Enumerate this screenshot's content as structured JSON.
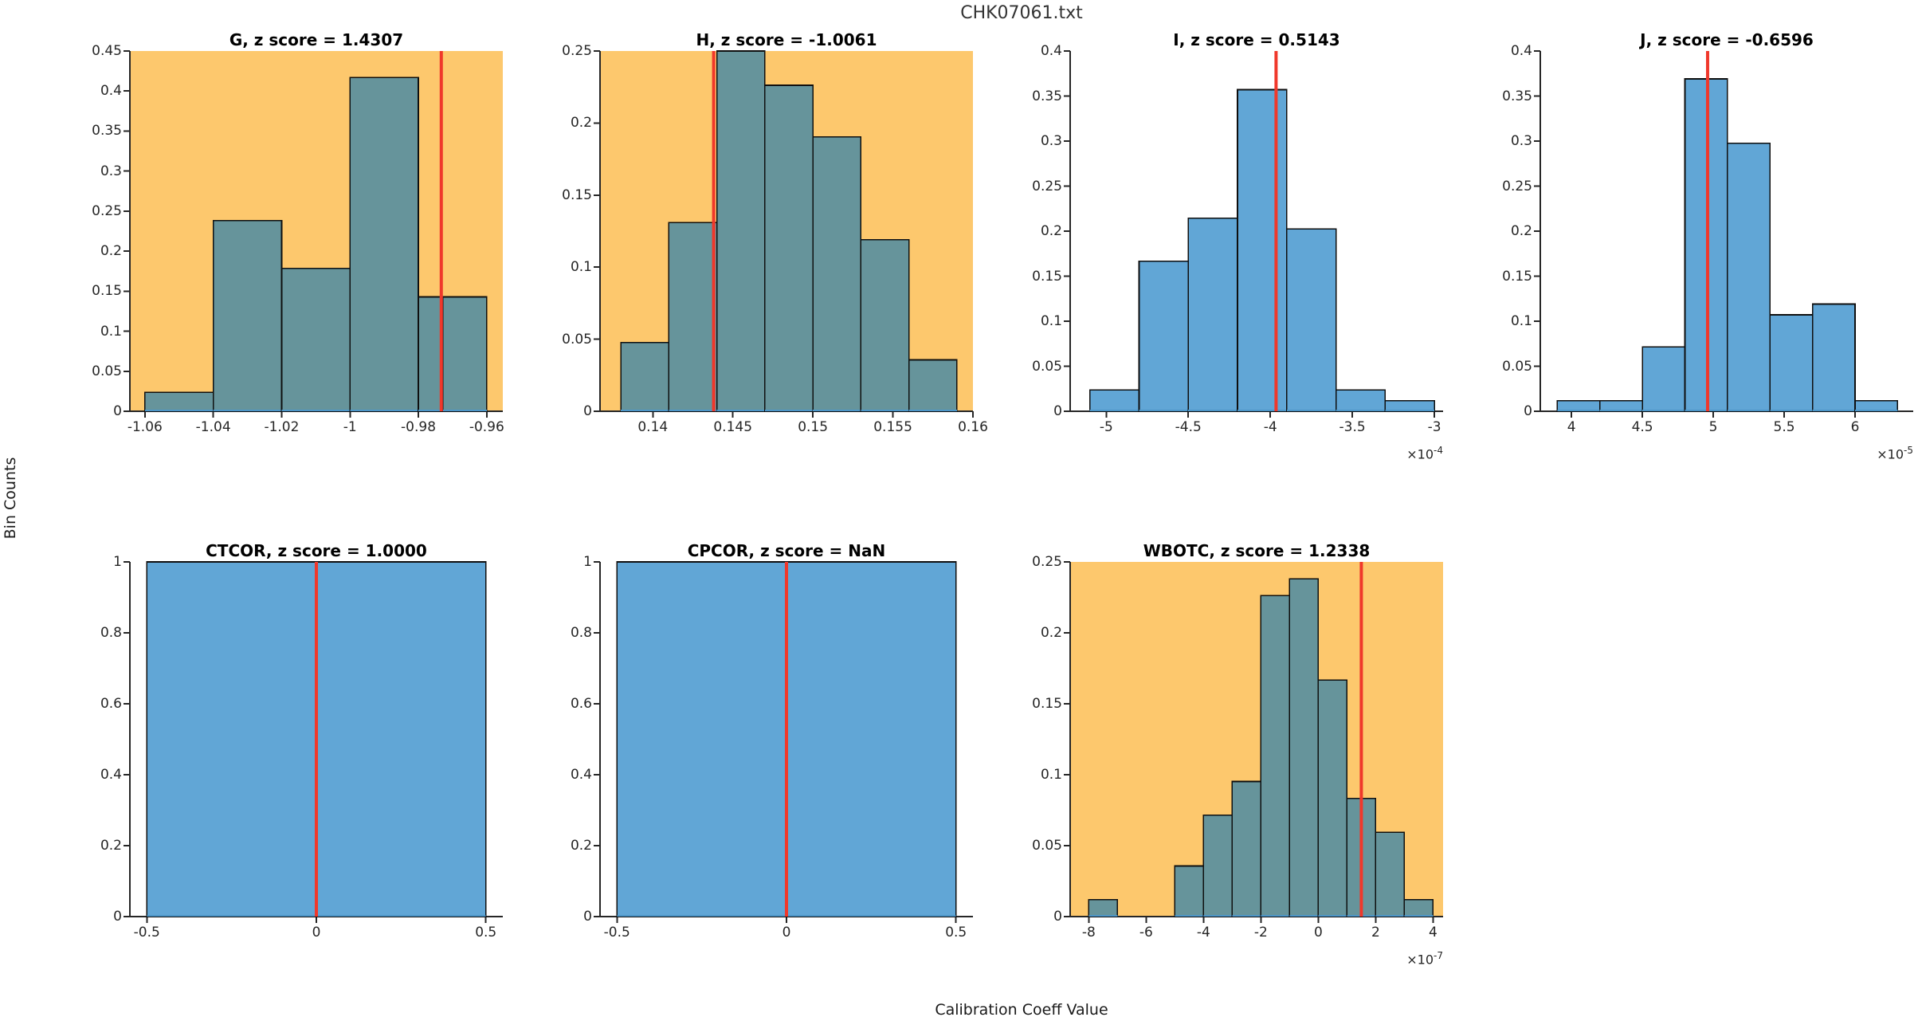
{
  "figure": {
    "title": "CHK07061.txt",
    "xlabel": "Calibration Coeff Value",
    "ylabel": "Bin Counts",
    "exponent_prefix": "×10",
    "colors": {
      "background": "#ffffff",
      "highlight_bg": "#FDC86D",
      "bar_blue": "#61A6D6",
      "bar_teal": "#66949B",
      "bar_edge": "#0f0f0f",
      "bar_baseline": "#4C96C8",
      "red_line": "#F0382B",
      "axis": "#262626",
      "tick_text": "#262626",
      "title_text": "#000000"
    }
  },
  "chart_data": [
    {
      "type": "histogram",
      "name": "G",
      "title": "G, z score = 1.4307",
      "z_score": "1.4307",
      "highlighted": true,
      "grid": {
        "row": 0,
        "col": 0
      },
      "bin_edges": [
        -1.06,
        -1.04,
        -1.02,
        -1.0,
        -0.98,
        -0.9728,
        -0.96
      ],
      "heights": [
        0.0238,
        0.2381,
        0.1786,
        0.4167,
        0.1429,
        0.1429
      ],
      "red_line_x": -0.9733,
      "xlim": [
        -1.0644,
        -0.9553
      ],
      "ylim": [
        0,
        0.45
      ],
      "xticks": [
        {
          "v": -1.06,
          "label": "-1.06"
        },
        {
          "v": -1.04,
          "label": "-1.04"
        },
        {
          "v": -1.02,
          "label": "-1.02"
        },
        {
          "v": -1.0,
          "label": "-1"
        },
        {
          "v": -0.98,
          "label": "-0.98"
        },
        {
          "v": -0.96,
          "label": "-0.96"
        }
      ],
      "yticks": [
        {
          "v": 0,
          "label": "0"
        },
        {
          "v": 0.05,
          "label": "0.05"
        },
        {
          "v": 0.1,
          "label": "0.1"
        },
        {
          "v": 0.15,
          "label": "0.15"
        },
        {
          "v": 0.2,
          "label": "0.2"
        },
        {
          "v": 0.25,
          "label": "0.25"
        },
        {
          "v": 0.3,
          "label": "0.3"
        },
        {
          "v": 0.35,
          "label": "0.35"
        },
        {
          "v": 0.4,
          "label": "0.4"
        },
        {
          "v": 0.45,
          "label": "0.45"
        }
      ],
      "x_exponent": null
    },
    {
      "type": "histogram",
      "name": "H",
      "title": "H, z score = -1.0061",
      "z_score": "-1.0061",
      "highlighted": true,
      "grid": {
        "row": 0,
        "col": 1
      },
      "bin_edges": [
        0.138,
        0.141,
        0.144,
        0.147,
        0.15,
        0.153,
        0.156,
        0.159
      ],
      "heights": [
        0.0476,
        0.131,
        0.25,
        0.2262,
        0.1905,
        0.119,
        0.0357
      ],
      "red_line_x": 0.1438,
      "xlim": [
        0.1367,
        0.16
      ],
      "ylim": [
        0,
        0.25
      ],
      "xticks": [
        {
          "v": 0.14,
          "label": "0.14"
        },
        {
          "v": 0.145,
          "label": "0.145"
        },
        {
          "v": 0.15,
          "label": "0.15"
        },
        {
          "v": 0.155,
          "label": "0.155"
        },
        {
          "v": 0.16,
          "label": "0.16"
        }
      ],
      "yticks": [
        {
          "v": 0,
          "label": "0"
        },
        {
          "v": 0.05,
          "label": "0.05"
        },
        {
          "v": 0.1,
          "label": "0.1"
        },
        {
          "v": 0.15,
          "label": "0.15"
        },
        {
          "v": 0.2,
          "label": "0.2"
        },
        {
          "v": 0.25,
          "label": "0.25"
        }
      ],
      "x_exponent": null
    },
    {
      "type": "histogram",
      "name": "I",
      "title": "I, z score = 0.5143",
      "z_score": "0.5143",
      "highlighted": false,
      "grid": {
        "row": 0,
        "col": 2
      },
      "bin_edges": [
        -0.00051,
        -0.00048,
        -0.00045,
        -0.00042,
        -0.00039,
        -0.00036,
        -0.00033,
        -0.0003
      ],
      "heights": [
        0.0238,
        0.1667,
        0.2143,
        0.3571,
        0.2024,
        0.0238,
        0.0119
      ],
      "red_line_x": -0.0003965,
      "xlim": [
        -0.000522,
        -0.0002947
      ],
      "ylim": [
        0,
        0.4
      ],
      "xticks": [
        {
          "v": -0.0005,
          "label": "-5"
        },
        {
          "v": -0.00045,
          "label": "-4.5"
        },
        {
          "v": -0.0004,
          "label": "-4"
        },
        {
          "v": -0.00035,
          "label": "-3.5"
        },
        {
          "v": -0.0003,
          "label": "-3"
        }
      ],
      "yticks": [
        {
          "v": 0,
          "label": "0"
        },
        {
          "v": 0.05,
          "label": "0.05"
        },
        {
          "v": 0.1,
          "label": "0.1"
        },
        {
          "v": 0.15,
          "label": "0.15"
        },
        {
          "v": 0.2,
          "label": "0.2"
        },
        {
          "v": 0.25,
          "label": "0.25"
        },
        {
          "v": 0.3,
          "label": "0.3"
        },
        {
          "v": 0.35,
          "label": "0.35"
        },
        {
          "v": 0.4,
          "label": "0.4"
        }
      ],
      "x_exponent": "-4"
    },
    {
      "type": "histogram",
      "name": "J",
      "title": "J, z score = -0.6596",
      "z_score": "-0.6596",
      "highlighted": false,
      "grid": {
        "row": 0,
        "col": 3
      },
      "bin_edges": [
        3.9e-05,
        4.2e-05,
        4.5e-05,
        4.8e-05,
        5.1e-05,
        5.4e-05,
        5.7e-05,
        6e-05,
        6.3e-05
      ],
      "heights": [
        0.0119,
        0.0119,
        0.0714,
        0.369,
        0.2976,
        0.1071,
        0.119,
        0.0119
      ],
      "red_line_x": 4.96e-05,
      "xlim": [
        3.78e-05,
        6.41e-05
      ],
      "ylim": [
        0,
        0.4
      ],
      "xticks": [
        {
          "v": 4e-05,
          "label": "4"
        },
        {
          "v": 4.5e-05,
          "label": "4.5"
        },
        {
          "v": 5e-05,
          "label": "5"
        },
        {
          "v": 5.5e-05,
          "label": "5.5"
        },
        {
          "v": 6e-05,
          "label": "6"
        }
      ],
      "yticks": [
        {
          "v": 0,
          "label": "0"
        },
        {
          "v": 0.05,
          "label": "0.05"
        },
        {
          "v": 0.1,
          "label": "0.1"
        },
        {
          "v": 0.15,
          "label": "0.15"
        },
        {
          "v": 0.2,
          "label": "0.2"
        },
        {
          "v": 0.25,
          "label": "0.25"
        },
        {
          "v": 0.3,
          "label": "0.3"
        },
        {
          "v": 0.35,
          "label": "0.35"
        },
        {
          "v": 0.4,
          "label": "0.4"
        }
      ],
      "x_exponent": "-5"
    },
    {
      "type": "histogram",
      "name": "CTCOR",
      "title": "CTCOR, z score = 1.0000",
      "z_score": "1.0000",
      "highlighted": false,
      "grid": {
        "row": 1,
        "col": 0
      },
      "bin_edges": [
        -0.5,
        0.5
      ],
      "heights": [
        1
      ],
      "red_line_x": 0,
      "xlim": [
        -0.55,
        0.55
      ],
      "ylim": [
        0,
        1
      ],
      "xticks": [
        {
          "v": -0.5,
          "label": "-0.5"
        },
        {
          "v": 0,
          "label": "0"
        },
        {
          "v": 0.5,
          "label": "0.5"
        }
      ],
      "yticks": [
        {
          "v": 0,
          "label": "0"
        },
        {
          "v": 0.2,
          "label": "0.2"
        },
        {
          "v": 0.4,
          "label": "0.4"
        },
        {
          "v": 0.6,
          "label": "0.6"
        },
        {
          "v": 0.8,
          "label": "0.8"
        },
        {
          "v": 1,
          "label": "1"
        }
      ],
      "x_exponent": null
    },
    {
      "type": "histogram",
      "name": "CPCOR",
      "title": "CPCOR, z score = NaN",
      "z_score": "NaN",
      "highlighted": false,
      "grid": {
        "row": 1,
        "col": 1
      },
      "bin_edges": [
        -0.5,
        0.5
      ],
      "heights": [
        1
      ],
      "red_line_x": 0,
      "xlim": [
        -0.55,
        0.55
      ],
      "ylim": [
        0,
        1
      ],
      "xticks": [
        {
          "v": -0.5,
          "label": "-0.5"
        },
        {
          "v": 0,
          "label": "0"
        },
        {
          "v": 0.5,
          "label": "0.5"
        }
      ],
      "yticks": [
        {
          "v": 0,
          "label": "0"
        },
        {
          "v": 0.2,
          "label": "0.2"
        },
        {
          "v": 0.4,
          "label": "0.4"
        },
        {
          "v": 0.6,
          "label": "0.6"
        },
        {
          "v": 0.8,
          "label": "0.8"
        },
        {
          "v": 1,
          "label": "1"
        }
      ],
      "x_exponent": null
    },
    {
      "type": "histogram",
      "name": "WBOTC",
      "title": "WBOTC, z score = 1.2338",
      "z_score": "1.2338",
      "highlighted": true,
      "grid": {
        "row": 1,
        "col": 2
      },
      "bin_edges": [
        -8e-07,
        -7e-07,
        -6e-07,
        -5e-07,
        -4e-07,
        -3e-07,
        -2e-07,
        -1e-07,
        0,
        1e-07,
        2e-07,
        3e-07,
        4e-07
      ],
      "heights": [
        0.0119,
        0,
        0,
        0.0357,
        0.0714,
        0.0952,
        0.2262,
        0.2381,
        0.1667,
        0.0833,
        0.0595,
        0.0119
      ],
      "red_line_x": 1.5e-07,
      "xlim": [
        -8.65e-07,
        4.35e-07
      ],
      "ylim": [
        0,
        0.25
      ],
      "xticks": [
        {
          "v": -8e-07,
          "label": "-8"
        },
        {
          "v": -6e-07,
          "label": "-6"
        },
        {
          "v": -4e-07,
          "label": "-4"
        },
        {
          "v": -2e-07,
          "label": "-2"
        },
        {
          "v": 0,
          "label": "0"
        },
        {
          "v": 2e-07,
          "label": "2"
        },
        {
          "v": 4e-07,
          "label": "4"
        }
      ],
      "yticks": [
        {
          "v": 0,
          "label": "0"
        },
        {
          "v": 0.05,
          "label": "0.05"
        },
        {
          "v": 0.1,
          "label": "0.1"
        },
        {
          "v": 0.15,
          "label": "0.15"
        },
        {
          "v": 0.2,
          "label": "0.2"
        },
        {
          "v": 0.25,
          "label": "0.25"
        }
      ],
      "x_exponent": "-7"
    }
  ]
}
